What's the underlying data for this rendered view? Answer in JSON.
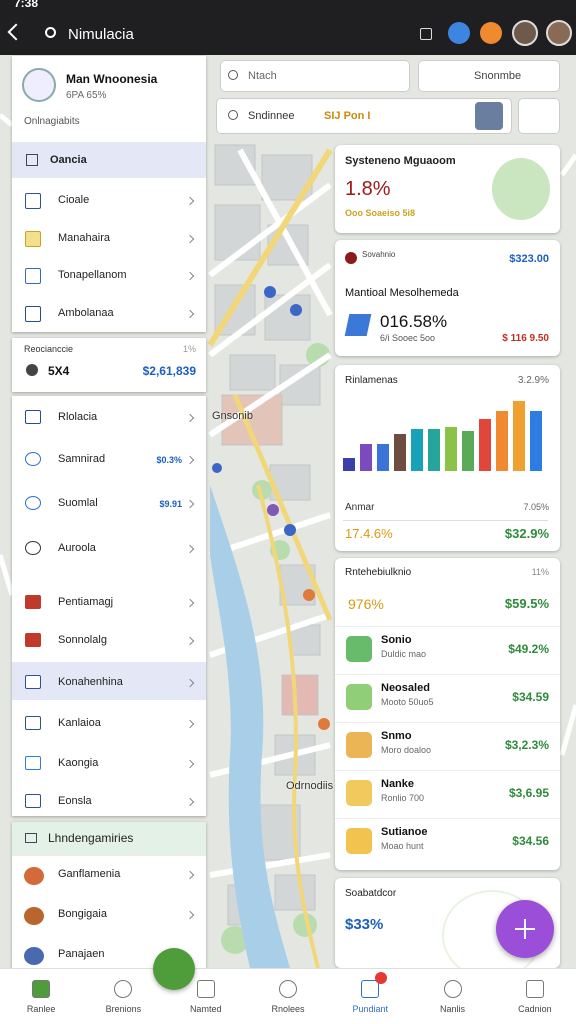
{
  "status_bar": {
    "time": "7:38"
  },
  "app_bar": {
    "title": "Nimulacia"
  },
  "search": {
    "primary": "Ntach",
    "secondary": "Snonmbe",
    "filter": "Sndinnee",
    "filter_tag": "SIJ Pon I"
  },
  "side_panel": {
    "title": "Man Wnoonesia",
    "subtitle": "6PA 65%",
    "caption": "Onlnagiabits",
    "section_one": {
      "title": "Oancia",
      "items": [
        "Cioale",
        "Manahaira",
        "Tonapellanom",
        "Ambolanaa"
      ]
    },
    "summary": {
      "label": "Reocianccie",
      "percent": "1%",
      "count": "5X4",
      "amount": "$2,61,839"
    },
    "items": [
      {
        "label": "Rlolacia"
      },
      {
        "label": "Samnirad",
        "value": "$0.3%"
      },
      {
        "label": "Suomlal",
        "value": "$9.91"
      },
      {
        "label": "Auroola"
      },
      {
        "label": "Pentiamagj"
      },
      {
        "label": "Sonnolalg"
      },
      {
        "label": "Konahenhina"
      },
      {
        "label": "Kanlaioa"
      },
      {
        "label": "Kaongia"
      },
      {
        "label": "Eonsla"
      }
    ],
    "section_two": {
      "title": "Lhndengamiries",
      "items": [
        "Ganflamenia",
        "Bongigaia",
        "Panajaen"
      ]
    }
  },
  "map_labels": [
    "Gnsonib",
    "Odrnodiis"
  ],
  "cards": {
    "overview": {
      "title": "Systeneno Mguaoom",
      "value": "1.8%",
      "note": "Ooo Soaeiso 5i8"
    },
    "national": {
      "label": "Sovahnio",
      "amount": "$323.00",
      "title": "Mantioal Mesolhemeda",
      "value": "016.58%",
      "note": "6/i Sooec 5oo",
      "change": "$ 116 9.50"
    },
    "chart": {
      "title": "Rinlamenas",
      "change": "3.2.9%",
      "values": [
        13,
        27,
        27,
        37,
        42,
        42,
        44,
        40,
        52,
        60,
        70,
        60
      ],
      "colors": [
        "#3d3fa8",
        "#7b4bbd",
        "#3b73d9",
        "#6d4c41",
        "#17a2b8",
        "#26a69a",
        "#8bc34a",
        "#5aaa5a",
        "#e0463a",
        "#ef8a30",
        "#f0a030",
        "#2d7de0"
      ],
      "footer_label": "Anmar",
      "footer_change": "7.05%",
      "left_value": "17.4.6%",
      "right_value": "$32.9%"
    },
    "list": {
      "title": "Rntehebiulknio",
      "percent": "11%",
      "left_value": "976%",
      "right_value": "$59.5%",
      "rows": [
        {
          "name": "Sonio",
          "detail": "Duldic mao",
          "value": "$49.2%"
        },
        {
          "name": "Neosaled",
          "detail": "Mooto 50uo5",
          "value": "$34.59"
        },
        {
          "name": "Snmo",
          "detail": "Moro doaloo",
          "value": "$3,2.3%"
        },
        {
          "name": "Nanke",
          "detail": "Ronlio 700",
          "value": "$3,6.95"
        },
        {
          "name": "Sutianoe",
          "detail": "Moao hunt",
          "value": "$34.56"
        }
      ]
    },
    "footer": {
      "title": "Soabatdcor",
      "value": "$33%"
    }
  },
  "bottom_nav": [
    "Ranlee",
    "Brenions",
    "Namted",
    "Rnolees",
    "Pundiant",
    "Nanlis",
    "Cadnion"
  ]
}
